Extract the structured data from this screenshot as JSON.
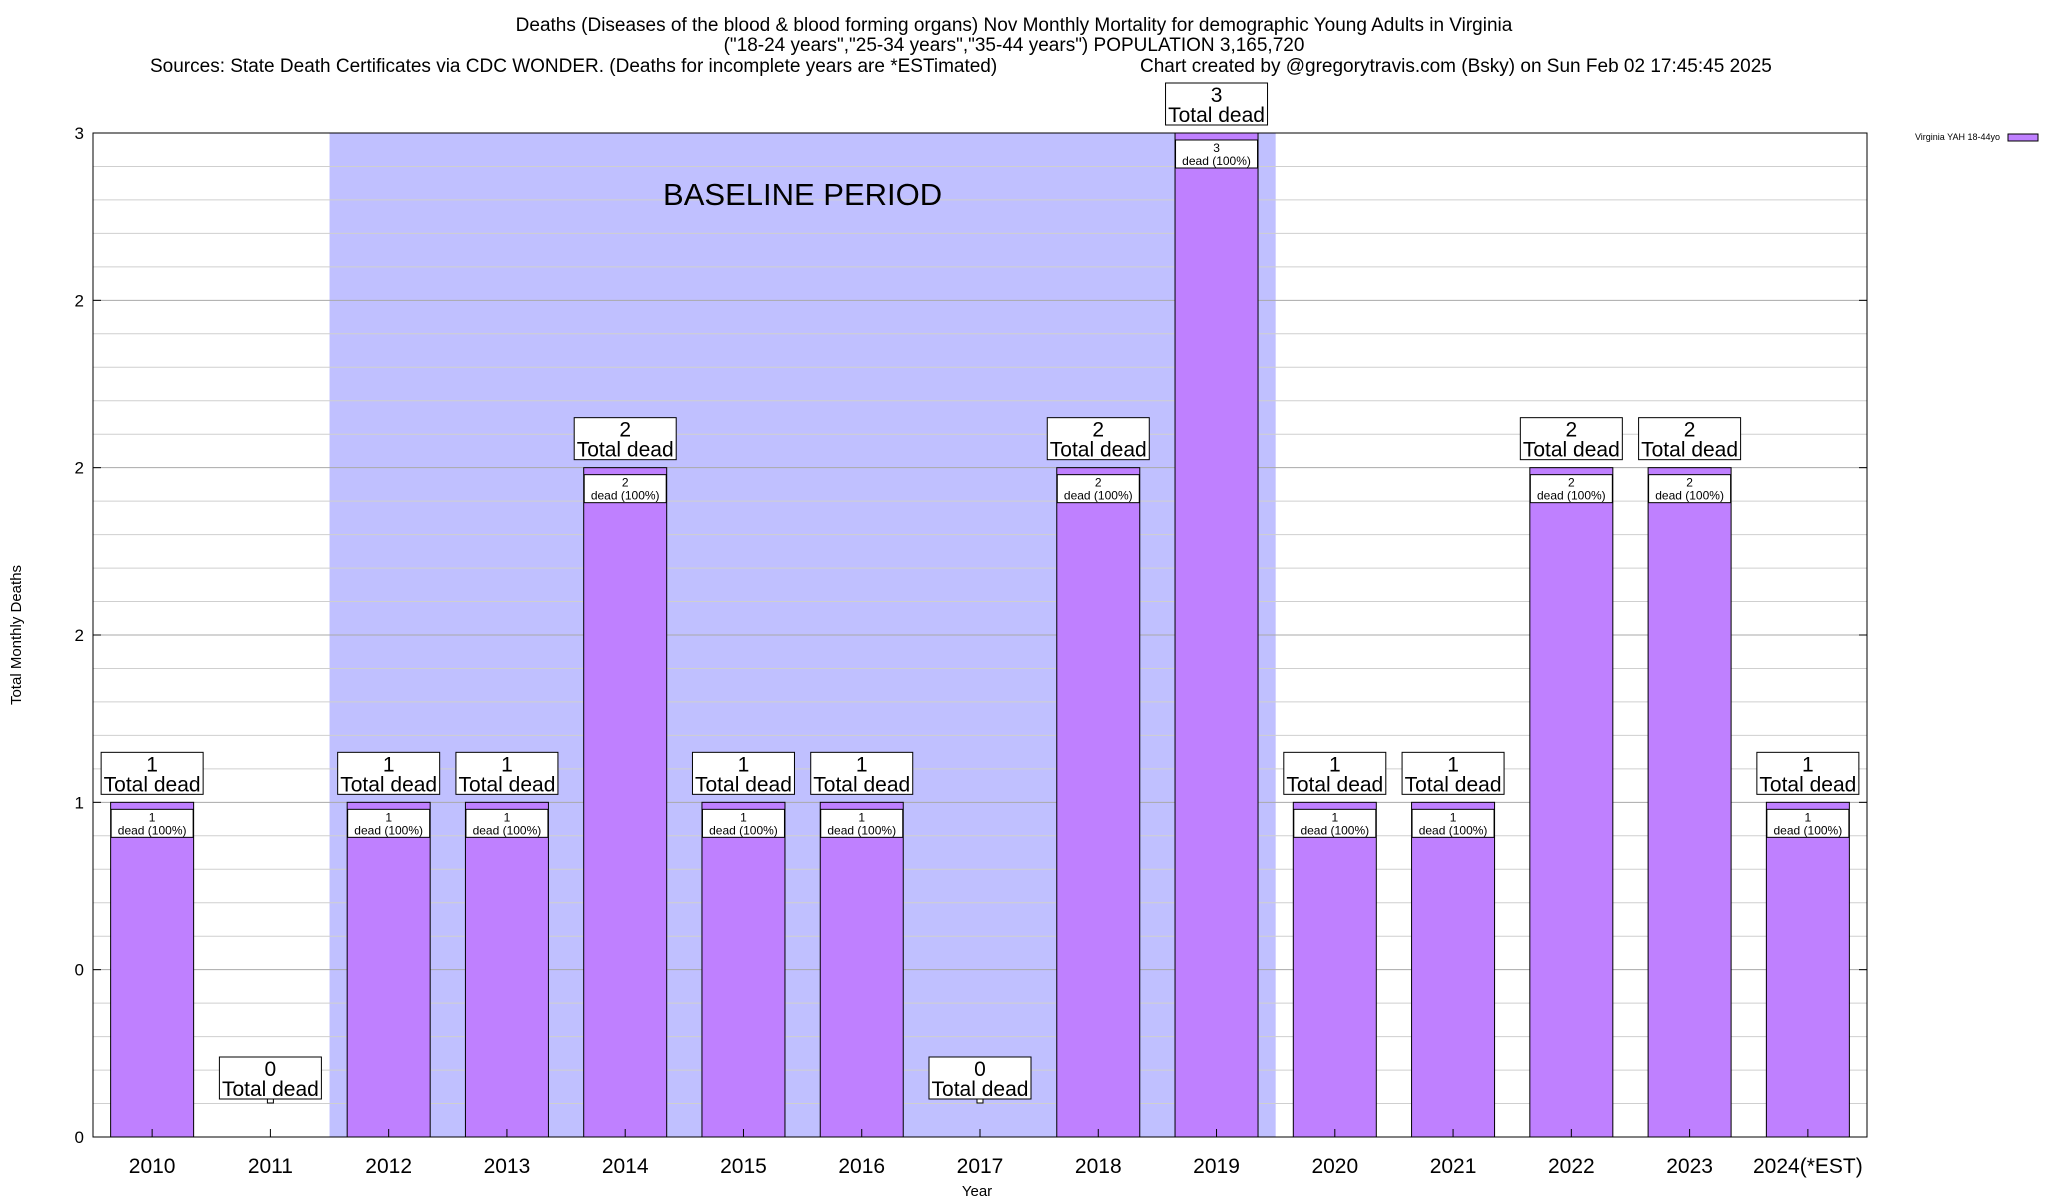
{
  "header": {
    "line1": "Deaths (Diseases of the blood & blood forming organs) Nov Monthly Mortality for demographic Young Adults in Virginia",
    "line2": "(\"18-24 years\",\"25-34 years\",\"35-44 years\") POPULATION 3,165,720",
    "sources": "Sources: State Death Certificates via CDC WONDER. (Deaths for incomplete years are *ESTimated)",
    "credit": "Chart created by @gregorytravis.com (Bsky) on Sun Feb 02 17:45:45 2025"
  },
  "chart_data": {
    "type": "bar",
    "xlabel": "Year",
    "ylabel": "Total Monthly Deaths",
    "ylim": [
      0,
      3
    ],
    "y_tick_values": [
      0,
      0.5,
      1,
      1.5,
      2,
      2.5,
      3
    ],
    "y_tick_labels": [
      "0",
      "0",
      "1",
      "2",
      "2",
      "2",
      "3"
    ],
    "categories": [
      "2010",
      "2011",
      "2012",
      "2013",
      "2014",
      "2015",
      "2016",
      "2017",
      "2018",
      "2019",
      "2020",
      "2021",
      "2022",
      "2023",
      "2024(*EST)"
    ],
    "series": [
      {
        "name": "Virginia YAH 18-44yo",
        "color": "#bf80ff",
        "values": [
          1,
          0,
          1,
          1,
          2,
          1,
          1,
          0,
          2,
          3,
          1,
          1,
          2,
          2,
          1
        ]
      }
    ],
    "total_label_suffix": "Total dead",
    "inner_label_suffix": "dead (100%)",
    "baseline": {
      "label": "BASELINE PERIOD",
      "from": "2012",
      "to": "2019",
      "color": "#c0c0ff"
    },
    "legend_position": "top-right",
    "grid": true
  }
}
